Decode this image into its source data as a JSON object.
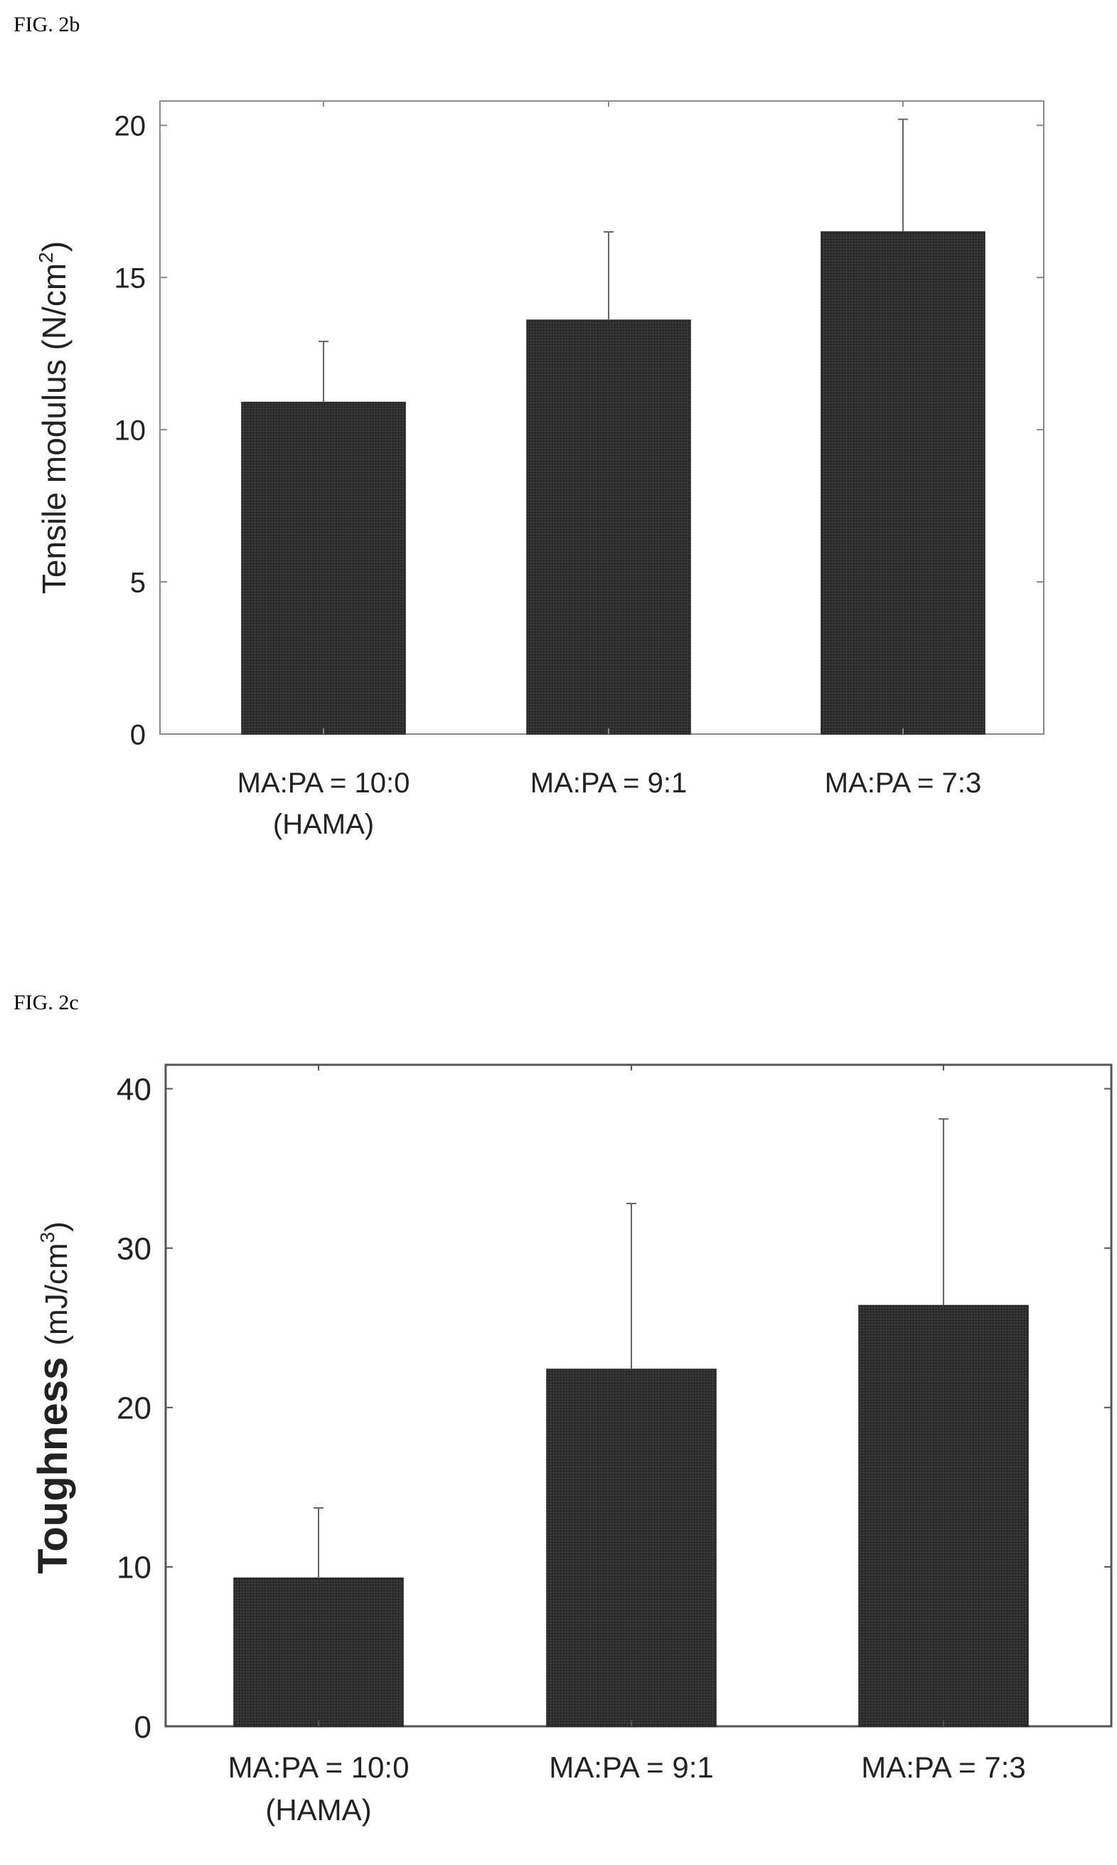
{
  "figures": [
    {
      "label": "FIG. 2b"
    },
    {
      "label": "FIG. 2c"
    }
  ],
  "chart_data": [
    {
      "type": "bar",
      "ylabel": "Tensile modulus (N/cm2)",
      "ylabel_main": "Tensile modulus (N/cm",
      "ylabel_sup": "2",
      "ylabel_end": ")",
      "categories": [
        [
          "MA:PA = 10:0",
          "(HAMA)"
        ],
        [
          "MA:PA = 9:1"
        ],
        [
          "MA:PA = 7:3"
        ]
      ],
      "values": [
        10.9,
        13.6,
        16.5
      ],
      "errors": [
        2.0,
        2.9,
        3.7
      ],
      "ylim": [
        0,
        20.8
      ],
      "yticks": [
        0,
        5,
        10,
        15,
        20
      ],
      "colors": {
        "bar": "#3a3a3a",
        "axis": "#8a8a8a"
      }
    },
    {
      "type": "bar",
      "ylabel": "Toughness (mJ/cm3)",
      "ylabel_main": "Toughness",
      "ylabel_unit": "(mJ/cm",
      "ylabel_sup": "3",
      "ylabel_end": ")",
      "categories": [
        [
          "MA:PA = 10:0",
          "(HAMA)"
        ],
        [
          "MA:PA = 9:1"
        ],
        [
          "MA:PA = 7:3"
        ]
      ],
      "values": [
        9.3,
        22.4,
        26.4
      ],
      "errors": [
        4.4,
        10.4,
        11.7
      ],
      "ylim": [
        0,
        41.5
      ],
      "yticks": [
        0,
        10,
        20,
        30,
        40
      ],
      "colors": {
        "bar": "#3a3a3a",
        "axis": "#555555"
      }
    }
  ]
}
